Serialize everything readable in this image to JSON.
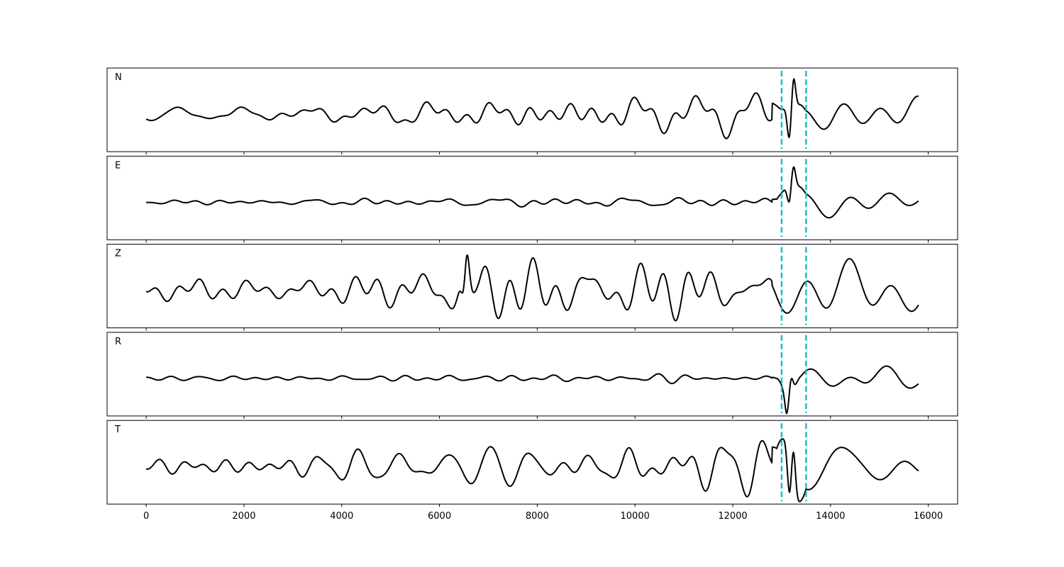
{
  "chart_data": {
    "type": "line",
    "title": "",
    "xlabel": "",
    "ylabel": "",
    "xlim": [
      -800,
      16600
    ],
    "x_ticks": [
      0,
      2000,
      4000,
      6000,
      8000,
      10000,
      12000,
      14000,
      16000
    ],
    "x_end": 15800,
    "y_ticks_shown": false,
    "grid": false,
    "legend": "none",
    "colors": {
      "trace": "#000000",
      "marker": "#17becf",
      "frame": "#000000"
    },
    "markers": [
      {
        "x": 13000,
        "style": "dashed",
        "color": "#17becf"
      },
      {
        "x": 13500,
        "style": "dashed",
        "color": "#17becf"
      }
    ],
    "panels": [
      {
        "name": "N",
        "segments": [
          [
            0,
            0.12
          ],
          [
            6700,
            0.28
          ],
          [
            10500,
            0.3
          ],
          [
            13000,
            0.28
          ],
          [
            13250,
            1.0
          ],
          [
            13500,
            0.3
          ],
          [
            14000,
            0.45
          ],
          [
            15800,
            0.5
          ]
        ],
        "event": {
          "x": 13200,
          "amp": 0.75
        }
      },
      {
        "name": "E",
        "segments": [
          [
            0,
            0.06
          ],
          [
            6000,
            0.1
          ],
          [
            9000,
            0.12
          ],
          [
            12900,
            0.12
          ],
          [
            13200,
            1.0
          ],
          [
            13500,
            0.35
          ],
          [
            14500,
            0.38
          ],
          [
            15800,
            0.3
          ]
        ],
        "event": {
          "x": 13200,
          "amp": 0.85
        }
      },
      {
        "name": "Z",
        "segments": [
          [
            0,
            0.3
          ],
          [
            2500,
            0.2
          ],
          [
            5000,
            0.32
          ],
          [
            6400,
            0.55
          ],
          [
            6550,
            1.0
          ],
          [
            6800,
            0.5
          ],
          [
            10000,
            0.45
          ],
          [
            12500,
            0.3
          ],
          [
            13400,
            0.45
          ],
          [
            15800,
            0.5
          ]
        ],
        "event": {
          "x": 6530,
          "amp": 0.55
        }
      },
      {
        "name": "R",
        "segments": [
          [
            0,
            0.06
          ],
          [
            6000,
            0.1
          ],
          [
            9000,
            0.12
          ],
          [
            12900,
            0.1
          ],
          [
            13100,
            0.9
          ],
          [
            13400,
            0.35
          ],
          [
            14700,
            0.5
          ],
          [
            15800,
            0.35
          ]
        ],
        "event": {
          "x": 13150,
          "amp": 0.75
        }
      },
      {
        "name": "T",
        "segments": [
          [
            0,
            0.1
          ],
          [
            6700,
            0.25
          ],
          [
            10500,
            0.3
          ],
          [
            12900,
            0.25
          ],
          [
            13200,
            1.0
          ],
          [
            13500,
            0.3
          ],
          [
            14800,
            0.45
          ],
          [
            15800,
            0.35
          ]
        ],
        "event": {
          "x": 13200,
          "amp": 0.8
        }
      }
    ]
  }
}
